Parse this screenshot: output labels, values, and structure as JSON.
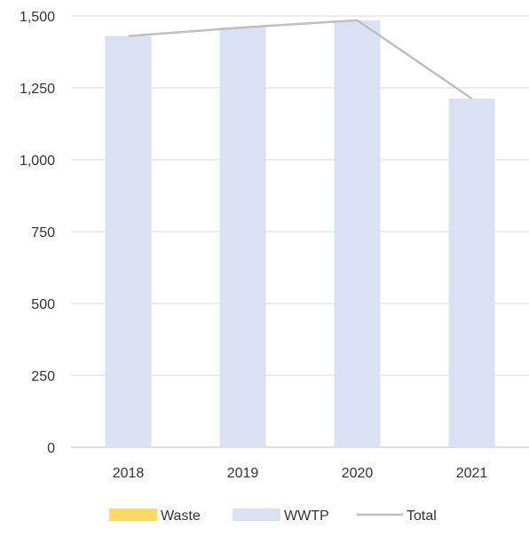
{
  "chart_data": {
    "type": "bar",
    "categories": [
      "2018",
      "2019",
      "2020",
      "2021"
    ],
    "series": [
      {
        "name": "Waste",
        "kind": "bar",
        "color": "#FFD966",
        "values": [
          0,
          0,
          0,
          0
        ]
      },
      {
        "name": "WWTP",
        "kind": "bar",
        "color": "#D9E1F2",
        "values": [
          1430,
          1460,
          1485,
          1213
        ]
      },
      {
        "name": "Total",
        "kind": "line",
        "color": "#BFBFBF",
        "values": [
          1430,
          1460,
          1485,
          1213
        ]
      }
    ],
    "y_ticks": [
      "0",
      "250",
      "500",
      "750",
      "1,000",
      "1,250",
      "1,500"
    ],
    "ylim": [
      0,
      1500
    ],
    "grid": true,
    "legend_position": "bottom"
  }
}
